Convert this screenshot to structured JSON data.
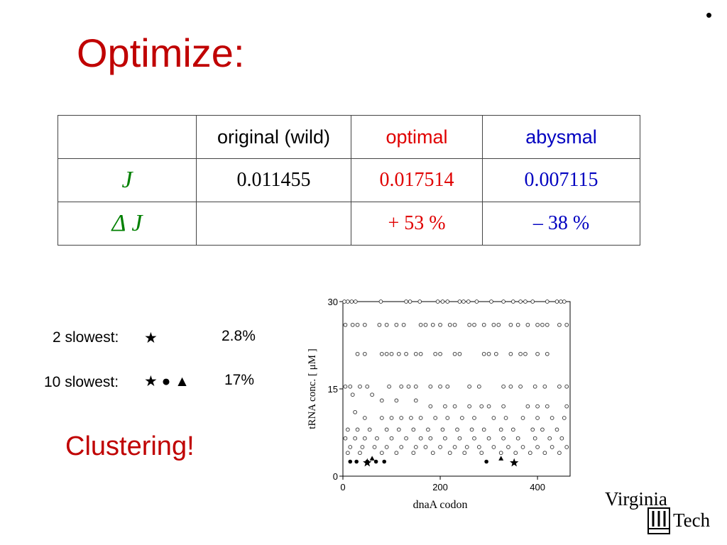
{
  "slide": {
    "bullet": "•",
    "title": "Optimize:",
    "table": {
      "headers": [
        "",
        "original (wild)",
        "optimal",
        "abysmal"
      ],
      "rows": [
        {
          "label": "J",
          "values": [
            "0.011455",
            "0.017514",
            "0.007115"
          ]
        },
        {
          "label": "Δ J",
          "values": [
            "",
            "+ 53 %",
            "– 38 %"
          ]
        }
      ]
    },
    "notes": [
      {
        "label": "2 slowest:",
        "symbols": "★",
        "value": "2.8%"
      },
      {
        "label": "10 slowest:",
        "symbols": "★ ● ▲",
        "value": "17%"
      }
    ],
    "conclusion": "Clustering!",
    "logo_text": [
      "Virginia",
      "Tech"
    ],
    "colors": {
      "title": "#c00000",
      "label": "#008000",
      "optimal": "#e00000",
      "abysmal": "#0000c0"
    }
  },
  "chart_data": {
    "type": "scatter",
    "xlabel": "dnaA codon",
    "ylabel": "tRNA conc. [ μM ]",
    "xlim": [
      0,
      467
    ],
    "ylim": [
      0,
      30
    ],
    "xticks": [
      0,
      200,
      400
    ],
    "yticks": [
      0,
      15,
      30
    ],
    "levels": [
      30,
      25.9,
      21.1,
      15.4,
      12.6,
      10.1,
      8.3,
      7.0,
      6.1,
      5.2,
      4.3,
      3.5
    ],
    "series": [
      {
        "marker": "open-circle",
        "points": [
          [
            3,
            30
          ],
          [
            10,
            30
          ],
          [
            18,
            30
          ],
          [
            26,
            30
          ],
          [
            78,
            30
          ],
          [
            130,
            30
          ],
          [
            138,
            30
          ],
          [
            158,
            30
          ],
          [
            195,
            30
          ],
          [
            205,
            30
          ],
          [
            215,
            30
          ],
          [
            240,
            30
          ],
          [
            248,
            30
          ],
          [
            258,
            30
          ],
          [
            275,
            30
          ],
          [
            305,
            30
          ],
          [
            330,
            30
          ],
          [
            350,
            30
          ],
          [
            365,
            30
          ],
          [
            375,
            30
          ],
          [
            390,
            30
          ],
          [
            420,
            30
          ],
          [
            440,
            30
          ],
          [
            448,
            30
          ],
          [
            455,
            30
          ],
          [
            5,
            26
          ],
          [
            20,
            26
          ],
          [
            30,
            26
          ],
          [
            45,
            26
          ],
          [
            75,
            26
          ],
          [
            90,
            26
          ],
          [
            110,
            26
          ],
          [
            125,
            26
          ],
          [
            160,
            26
          ],
          [
            170,
            26
          ],
          [
            185,
            26
          ],
          [
            200,
            26
          ],
          [
            220,
            26
          ],
          [
            230,
            26
          ],
          [
            260,
            26
          ],
          [
            270,
            26
          ],
          [
            290,
            26
          ],
          [
            310,
            26
          ],
          [
            320,
            26
          ],
          [
            345,
            26
          ],
          [
            360,
            26
          ],
          [
            380,
            26
          ],
          [
            400,
            26
          ],
          [
            410,
            26
          ],
          [
            420,
            26
          ],
          [
            445,
            26
          ],
          [
            460,
            26
          ],
          [
            30,
            21
          ],
          [
            45,
            21
          ],
          [
            80,
            21
          ],
          [
            90,
            21
          ],
          [
            100,
            21
          ],
          [
            115,
            21
          ],
          [
            130,
            21
          ],
          [
            150,
            21
          ],
          [
            160,
            21
          ],
          [
            190,
            21
          ],
          [
            200,
            21
          ],
          [
            230,
            21
          ],
          [
            240,
            21
          ],
          [
            290,
            21
          ],
          [
            300,
            21
          ],
          [
            315,
            21
          ],
          [
            345,
            21
          ],
          [
            365,
            21
          ],
          [
            375,
            21
          ],
          [
            400,
            21
          ],
          [
            420,
            21
          ],
          [
            5,
            15.4
          ],
          [
            15,
            15.4
          ],
          [
            35,
            15.4
          ],
          [
            50,
            15.4
          ],
          [
            95,
            15.4
          ],
          [
            120,
            15.4
          ],
          [
            135,
            15.4
          ],
          [
            150,
            15.4
          ],
          [
            180,
            15.4
          ],
          [
            200,
            15.4
          ],
          [
            215,
            15.4
          ],
          [
            260,
            15.4
          ],
          [
            280,
            15.4
          ],
          [
            330,
            15.4
          ],
          [
            345,
            15.4
          ],
          [
            365,
            15.4
          ],
          [
            395,
            15.4
          ],
          [
            415,
            15.4
          ],
          [
            445,
            15.4
          ],
          [
            460,
            15.4
          ],
          [
            20,
            14
          ],
          [
            60,
            14
          ],
          [
            80,
            13
          ],
          [
            110,
            13
          ],
          [
            150,
            13
          ],
          [
            180,
            12
          ],
          [
            210,
            12
          ],
          [
            230,
            12
          ],
          [
            260,
            12
          ],
          [
            285,
            12
          ],
          [
            300,
            12
          ],
          [
            330,
            12
          ],
          [
            380,
            12
          ],
          [
            400,
            12
          ],
          [
            420,
            12
          ],
          [
            460,
            12
          ],
          [
            25,
            11
          ],
          [
            45,
            10
          ],
          [
            80,
            10
          ],
          [
            100,
            10
          ],
          [
            120,
            10
          ],
          [
            140,
            10
          ],
          [
            160,
            10
          ],
          [
            190,
            10
          ],
          [
            215,
            10
          ],
          [
            245,
            10
          ],
          [
            270,
            10
          ],
          [
            310,
            10
          ],
          [
            335,
            10
          ],
          [
            370,
            10
          ],
          [
            400,
            10
          ],
          [
            430,
            10
          ],
          [
            455,
            10
          ],
          [
            10,
            8
          ],
          [
            30,
            8
          ],
          [
            55,
            8
          ],
          [
            90,
            8
          ],
          [
            115,
            8
          ],
          [
            145,
            8
          ],
          [
            175,
            8
          ],
          [
            205,
            8
          ],
          [
            235,
            8
          ],
          [
            265,
            8
          ],
          [
            290,
            8
          ],
          [
            325,
            8
          ],
          [
            350,
            8
          ],
          [
            390,
            8
          ],
          [
            410,
            8
          ],
          [
            440,
            8
          ],
          [
            5,
            6.5
          ],
          [
            25,
            6.5
          ],
          [
            45,
            6.5
          ],
          [
            70,
            6.5
          ],
          [
            100,
            6.5
          ],
          [
            130,
            6.5
          ],
          [
            160,
            6.5
          ],
          [
            180,
            6.5
          ],
          [
            210,
            6.5
          ],
          [
            240,
            6.5
          ],
          [
            270,
            6.5
          ],
          [
            300,
            6.5
          ],
          [
            330,
            6.5
          ],
          [
            360,
            6.5
          ],
          [
            395,
            6.5
          ],
          [
            425,
            6.5
          ],
          [
            450,
            6.5
          ],
          [
            15,
            5
          ],
          [
            40,
            5
          ],
          [
            65,
            5
          ],
          [
            90,
            5
          ],
          [
            120,
            5
          ],
          [
            150,
            5
          ],
          [
            170,
            5
          ],
          [
            200,
            5
          ],
          [
            230,
            5
          ],
          [
            255,
            5
          ],
          [
            280,
            5
          ],
          [
            310,
            5
          ],
          [
            340,
            5
          ],
          [
            370,
            5
          ],
          [
            400,
            5
          ],
          [
            430,
            5
          ],
          [
            460,
            5
          ],
          [
            10,
            4
          ],
          [
            35,
            4
          ],
          [
            80,
            4
          ],
          [
            110,
            4
          ],
          [
            145,
            4
          ],
          [
            185,
            4
          ],
          [
            220,
            4
          ],
          [
            250,
            4
          ],
          [
            285,
            4
          ],
          [
            325,
            4
          ],
          [
            355,
            4
          ],
          [
            385,
            4
          ],
          [
            415,
            4
          ],
          [
            445,
            4
          ]
        ]
      },
      {
        "marker": "filled-circle",
        "points": [
          [
            15,
            2.5
          ],
          [
            28,
            2.5
          ],
          [
            50,
            2.5
          ],
          [
            68,
            2.5
          ],
          [
            85,
            2.5
          ],
          [
            295,
            2.5
          ]
        ]
      },
      {
        "marker": "filled-triangle",
        "points": [
          [
            60,
            3
          ],
          [
            325,
            3
          ]
        ]
      },
      {
        "marker": "star",
        "points": [
          [
            50,
            2.3
          ],
          [
            352,
            2.3
          ]
        ]
      }
    ]
  }
}
